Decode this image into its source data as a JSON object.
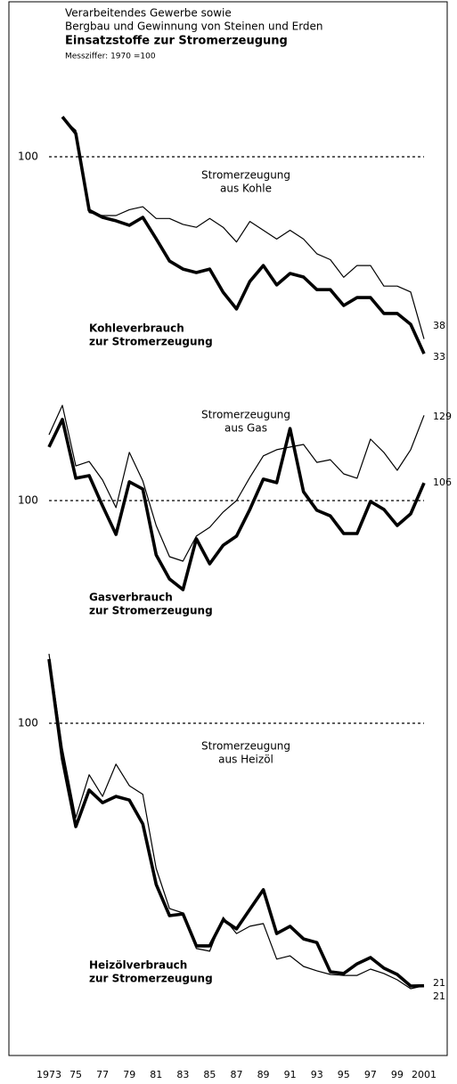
{
  "chart_data": [
    {
      "type": "line",
      "title": [
        "Verarbeitendes Gewerbe sowie",
        "Bergbau und Gewinnung von Steinen und Erden"
      ],
      "subtitle": "Einsatzstoffe zur Stromerzeugung",
      "note": "Messziffer: 1970 =100",
      "categories": [
        "1973",
        null,
        "75",
        null,
        "77",
        null,
        "79",
        null,
        "81",
        null,
        "83",
        null,
        "85",
        null,
        "87",
        null,
        "89",
        null,
        "91",
        null,
        "93",
        null,
        "95",
        null,
        "97",
        null,
        "99",
        null,
        "2001"
      ],
      "ylim": [
        30,
        120
      ],
      "yticks": [
        100
      ],
      "grid": true,
      "series": [
        {
          "name": [
            "Kohleverbrauch",
            "zur Stromerzeugung"
          ],
          "color": "#000000",
          "width": "thick",
          "values": [
            null,
            113.6,
            107.9,
            81.8,
            79.4,
            78.2,
            76.7,
            79.4,
            72.1,
            64.5,
            61.8,
            60.6,
            61.8,
            53.9,
            48.2,
            57.6,
            63,
            56.4,
            60.3,
            59.1,
            54.8,
            54.8,
            49.4,
            52.1,
            52.1,
            46.7,
            46.7,
            43,
            33
          ]
        },
        {
          "name": [
            "Stromerzeugung",
            "aus Kohle"
          ],
          "color": "#000000",
          "width": "thin",
          "values": [
            null,
            113,
            109,
            81,
            80,
            80,
            82,
            83,
            79,
            79,
            77,
            76,
            79,
            76,
            71,
            78,
            75,
            72,
            75,
            72,
            67,
            65,
            59,
            63,
            63,
            56,
            56,
            54,
            38
          ]
        }
      ]
    },
    {
      "type": "line",
      "categories": [
        "1973",
        null,
        "75",
        null,
        "77",
        null,
        "79",
        null,
        "81",
        null,
        "83",
        null,
        "85",
        null,
        "87",
        null,
        "89",
        null,
        "91",
        null,
        "93",
        null,
        "95",
        null,
        "97",
        null,
        "99",
        null,
        "2001"
      ],
      "ylim": [
        60,
        140
      ],
      "yticks": [
        100
      ],
      "grid": true,
      "series": [
        {
          "name": [
            "Gasverbrauch",
            "zur Stromerzeugung"
          ],
          "color": "#000000",
          "width": "thick",
          "values": [
            118.2,
            127.6,
            107.6,
            108.5,
            98.2,
            88.5,
            106.4,
            103.9,
            81.5,
            73.3,
            69.7,
            87,
            78.5,
            84.8,
            87.9,
            97,
            107.3,
            106.1,
            124.5,
            103,
            96.7,
            94.8,
            88.8,
            88.8,
            99.7,
            97,
            91.5,
            95.5,
            106
          ]
        },
        {
          "name": [
            "Stromerzeugung",
            "aus Gas"
          ],
          "color": "#000000",
          "width": "thin",
          "values": [
            122.4,
            132.4,
            111.8,
            113.3,
            107,
            97.6,
            116.4,
            106.7,
            91.5,
            80.9,
            79.4,
            87.9,
            90.9,
            96.1,
            100,
            107.9,
            115.2,
            117.3,
            118.2,
            119.1,
            113,
            113.9,
            109.1,
            107.6,
            120.9,
            116.4,
            110.3,
            117.3,
            129
          ]
        }
      ]
    },
    {
      "type": "line",
      "categories": [
        "1973",
        null,
        "75",
        null,
        "77",
        null,
        "79",
        null,
        "81",
        null,
        "83",
        null,
        "85",
        null,
        "87",
        null,
        "89",
        null,
        "91",
        null,
        "93",
        null,
        "95",
        null,
        "97",
        null,
        "99",
        null,
        "2001"
      ],
      "ylim": [
        10,
        128
      ],
      "yticks": [
        100
      ],
      "grid": true,
      "series": [
        {
          "name": [
            "Heizölverbrauch",
            "zur Stromerzeugung"
          ],
          "color": "#000000",
          "width": "thick",
          "values": [
            119.3,
            89.3,
            68.9,
            79.9,
            76.1,
            78,
            76.9,
            69.7,
            51.5,
            42.1,
            42.6,
            33,
            33,
            40.8,
            38.1,
            44,
            49.9,
            36.7,
            38.9,
            35.1,
            34,
            25.2,
            24.7,
            27.6,
            29.5,
            26.3,
            24.4,
            20.9,
            21
          ]
        },
        {
          "name": [
            "Stromerzeugung",
            "aus Heizöl"
          ],
          "color": "#000000",
          "width": "thin",
          "values": [
            120.9,
            92.5,
            71.6,
            84.5,
            78,
            87.7,
            81.2,
            78.6,
            56.3,
            44.2,
            42.9,
            32.2,
            31.4,
            41.6,
            36.7,
            38.9,
            39.7,
            29,
            30,
            26.8,
            25.5,
            24.4,
            24.1,
            24.1,
            26,
            24.7,
            22.8,
            20.1,
            21
          ]
        }
      ]
    }
  ]
}
